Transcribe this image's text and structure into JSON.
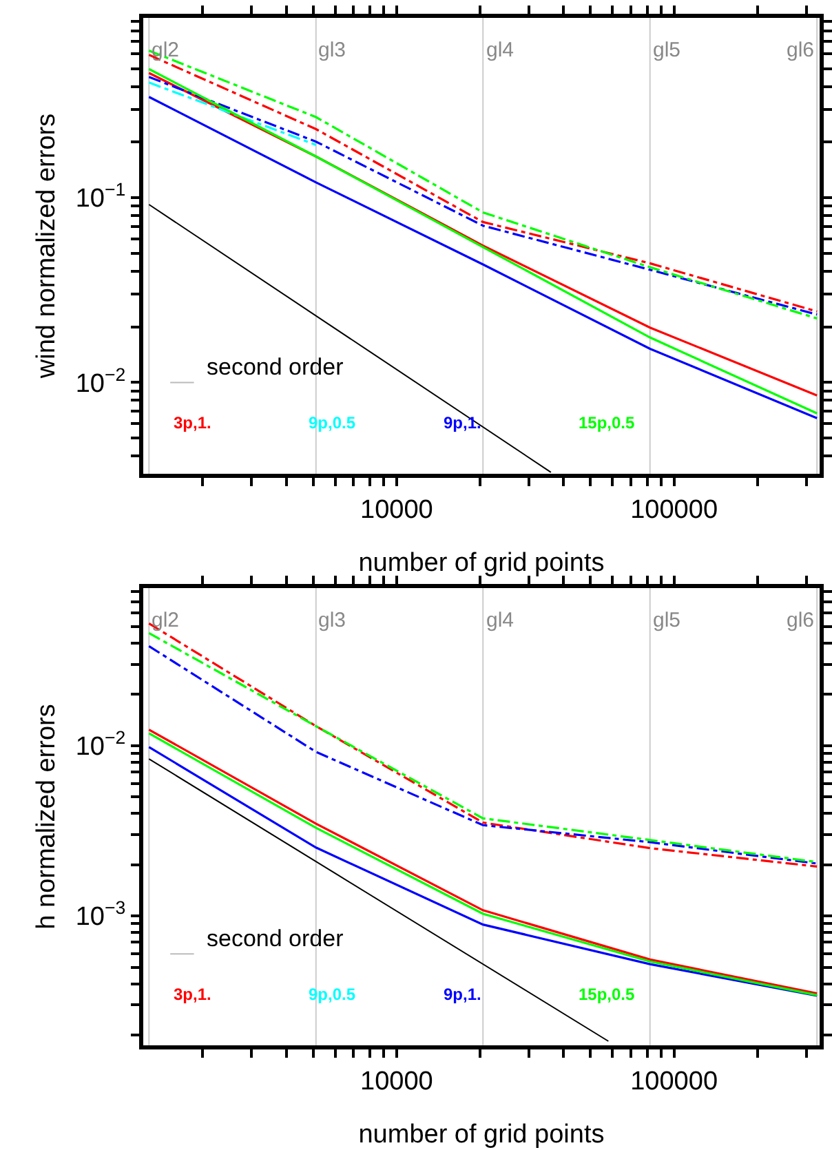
{
  "chart_data": [
    {
      "type": "line",
      "xlabel": "number of grid points",
      "ylabel": "wind normalized errors",
      "log": "xy",
      "grid": false,
      "x": [
        1280,
        5120,
        20480,
        81920,
        327680
      ],
      "xlim": [
        1220,
        335000
      ],
      "ylim": [
        0.0032,
        0.94
      ],
      "xticks": [
        {
          "value": 2000,
          "label": null
        },
        {
          "value": 3000,
          "label": null
        },
        {
          "value": 4000,
          "label": null
        },
        {
          "value": 5000,
          "label": null
        },
        {
          "value": 6000,
          "label": null
        },
        {
          "value": 7000,
          "label": null
        },
        {
          "value": 8000,
          "label": null
        },
        {
          "value": 9000,
          "label": null
        },
        10000,
        {
          "value": 20000,
          "label": null
        },
        {
          "value": 30000,
          "label": null
        },
        {
          "value": 40000,
          "label": null
        },
        {
          "value": 50000,
          "label": null
        },
        {
          "value": 60000,
          "label": null
        },
        {
          "value": 70000,
          "label": null
        },
        {
          "value": 80000,
          "label": null
        },
        {
          "value": 90000,
          "label": null
        },
        100000,
        {
          "value": 200000,
          "label": null
        },
        {
          "value": 300000,
          "label": null
        }
      ],
      "yticks": [
        {
          "value": 0.004,
          "label": null
        },
        {
          "value": 0.005,
          "label": null
        },
        {
          "value": 0.006,
          "label": null
        },
        {
          "value": 0.007,
          "label": null
        },
        {
          "value": 0.008,
          "label": null
        },
        {
          "value": 0.009,
          "label": null
        },
        {
          "value": 0.01,
          "label": "10$^{−2}$"
        },
        {
          "value": 0.02,
          "label": null
        },
        {
          "value": 0.03,
          "label": null
        },
        {
          "value": 0.04,
          "label": null
        },
        {
          "value": 0.05,
          "label": null
        },
        {
          "value": 0.06,
          "label": null
        },
        {
          "value": 0.07,
          "label": null
        },
        {
          "value": 0.08,
          "label": null
        },
        {
          "value": 0.09,
          "label": null
        },
        {
          "value": 0.1,
          "label": "10$^{−1}$"
        },
        {
          "value": 0.2,
          "label": null
        },
        {
          "value": 0.3,
          "label": null
        },
        {
          "value": 0.4,
          "label": null
        },
        {
          "value": 0.5,
          "label": null
        },
        {
          "value": 0.6,
          "label": null
        },
        {
          "value": 0.7,
          "label": null
        },
        {
          "value": 0.8,
          "label": null
        },
        {
          "value": 0.9,
          "label": null
        }
      ],
      "ref_lines": [
        {
          "axis": "x",
          "value": 1280,
          "label": "gl2",
          "color": "#cccccc"
        },
        {
          "axis": "x",
          "value": 5120,
          "label": "gl3",
          "color": "#cccccc"
        },
        {
          "axis": "x",
          "value": 20480,
          "label": "gl4",
          "color": "#cccccc"
        },
        {
          "axis": "x",
          "value": 81920,
          "label": "gl5",
          "color": "#cccccc"
        },
        {
          "axis": "x",
          "value": 327680,
          "label": "gl6",
          "color": "#cccccc"
        }
      ],
      "series": [
        {
          "name": "second order",
          "color": "#000000",
          "x": [
            1280,
            36000
          ],
          "values": [
            0.0918,
            0.00326
          ],
          "line_style": "solid"
        },
        {
          "name": "3p,1.",
          "color": "#ff0000",
          "values": [
            0.473,
            0.167,
            0.055,
            0.0198,
            0.0085
          ],
          "line_style": "solid"
        },
        {
          "color": "#ff0000",
          "values": [
            0.593,
            0.235,
            0.0738,
            0.0441,
            0.0242
          ],
          "line_style": "dashdot"
        },
        {
          "name": "9p,0.5",
          "color": "#00ffff",
          "values": [
            null,
            null,
            null,
            null,
            null
          ],
          "line_style": "solid"
        },
        {
          "color": "#00ffff",
          "values": [
            0.42,
            0.193,
            null,
            null,
            null
          ],
          "line_style": "dashdot"
        },
        {
          "name": "9p,1.",
          "color": "#0000ff",
          "values": [
            0.351,
            0.121,
            0.0435,
            0.0152,
            0.0064
          ],
          "line_style": "solid"
        },
        {
          "color": "#0000ff",
          "values": [
            0.45,
            0.201,
            0.0705,
            0.0407,
            0.0233
          ],
          "line_style": "dashdot"
        },
        {
          "name": "15p,0.5",
          "color": "#00ff00",
          "values": [
            0.497,
            0.167,
            0.054,
            0.0175,
            0.0068
          ],
          "line_style": "solid"
        },
        {
          "color": "#00ff00",
          "values": [
            0.625,
            0.273,
            0.0832,
            0.042,
            0.0222
          ],
          "line_style": "dashdot"
        }
      ]
    },
    {
      "type": "line",
      "xlabel": "number of grid points",
      "ylabel": "h normalized errors",
      "log": "xy",
      "grid": false,
      "x": [
        1280,
        5120,
        20480,
        81920,
        327680
      ],
      "xlim": [
        1220,
        335000
      ],
      "ylim": [
        0.000174,
        0.084
      ],
      "xticks": [
        {
          "value": 2000,
          "label": null
        },
        {
          "value": 3000,
          "label": null
        },
        {
          "value": 4000,
          "label": null
        },
        {
          "value": 5000,
          "label": null
        },
        {
          "value": 6000,
          "label": null
        },
        {
          "value": 7000,
          "label": null
        },
        {
          "value": 8000,
          "label": null
        },
        {
          "value": 9000,
          "label": null
        },
        10000,
        {
          "value": 20000,
          "label": null
        },
        {
          "value": 30000,
          "label": null
        },
        {
          "value": 40000,
          "label": null
        },
        {
          "value": 50000,
          "label": null
        },
        {
          "value": 60000,
          "label": null
        },
        {
          "value": 70000,
          "label": null
        },
        {
          "value": 80000,
          "label": null
        },
        {
          "value": 90000,
          "label": null
        },
        100000,
        {
          "value": 200000,
          "label": null
        },
        {
          "value": 300000,
          "label": null
        }
      ],
      "yticks": [
        {
          "value": 0.0002,
          "label": null
        },
        {
          "value": 0.0003,
          "label": null
        },
        {
          "value": 0.0004,
          "label": null
        },
        {
          "value": 0.0005,
          "label": null
        },
        {
          "value": 0.0006,
          "label": null
        },
        {
          "value": 0.0007,
          "label": null
        },
        {
          "value": 0.0008,
          "label": null
        },
        {
          "value": 0.0009,
          "label": null
        },
        {
          "value": 0.001,
          "label": "10$^{−3}$"
        },
        {
          "value": 0.002,
          "label": null
        },
        {
          "value": 0.003,
          "label": null
        },
        {
          "value": 0.004,
          "label": null
        },
        {
          "value": 0.005,
          "label": null
        },
        {
          "value": 0.006,
          "label": null
        },
        {
          "value": 0.007,
          "label": null
        },
        {
          "value": 0.008,
          "label": null
        },
        {
          "value": 0.009,
          "label": null
        },
        {
          "value": 0.01,
          "label": "10$^{−2}$"
        },
        {
          "value": 0.02,
          "label": null
        },
        {
          "value": 0.03,
          "label": null
        },
        {
          "value": 0.04,
          "label": null
        },
        {
          "value": 0.05,
          "label": null
        },
        {
          "value": 0.06,
          "label": null
        },
        {
          "value": 0.07,
          "label": null
        },
        {
          "value": 0.08,
          "label": null
        }
      ],
      "ref_lines": [
        {
          "axis": "x",
          "value": 1280,
          "label": "gl2",
          "color": "#cccccc"
        },
        {
          "axis": "x",
          "value": 5120,
          "label": "gl3",
          "color": "#cccccc"
        },
        {
          "axis": "x",
          "value": 20480,
          "label": "gl4",
          "color": "#cccccc"
        },
        {
          "axis": "x",
          "value": 81920,
          "label": "gl5",
          "color": "#cccccc"
        },
        {
          "axis": "x",
          "value": 327680,
          "label": "gl6",
          "color": "#cccccc"
        }
      ],
      "series": [
        {
          "name": "second order",
          "color": "#000000",
          "x": [
            1280,
            58000
          ],
          "values": [
            0.00835,
            0.000184
          ],
          "line_style": "solid"
        },
        {
          "name": "3p,1.",
          "color": "#ff0000",
          "values": [
            0.0124,
            0.00348,
            0.00108,
            0.000555,
            0.000351
          ],
          "line_style": "solid"
        },
        {
          "color": "#ff0000",
          "values": [
            0.0521,
            0.013,
            0.00353,
            0.0025,
            0.00195
          ],
          "line_style": "dashdot"
        },
        {
          "name": "9p,0.5",
          "color": "#00ffff",
          "values": [
            null,
            null,
            null,
            null,
            null
          ],
          "line_style": "solid"
        },
        {
          "color": "#00ffff",
          "values": [
            null,
            null,
            null,
            null,
            null
          ],
          "line_style": "dashdot"
        },
        {
          "name": "9p,1.",
          "color": "#0000ff",
          "values": [
            0.0098,
            0.00252,
            0.00089,
            0.000521,
            0.00034
          ],
          "line_style": "solid"
        },
        {
          "color": "#0000ff",
          "values": [
            0.0383,
            0.00918,
            0.00341,
            0.00271,
            0.00203
          ],
          "line_style": "dashdot"
        },
        {
          "name": "15p,0.5",
          "color": "#00ff00",
          "values": [
            0.0118,
            0.00329,
            0.00103,
            0.00054,
            0.000343
          ],
          "line_style": "solid"
        },
        {
          "color": "#00ff00",
          "values": [
            0.0457,
            0.013,
            0.00374,
            0.00279,
            0.00207
          ],
          "line_style": "dashdot"
        }
      ]
    }
  ]
}
